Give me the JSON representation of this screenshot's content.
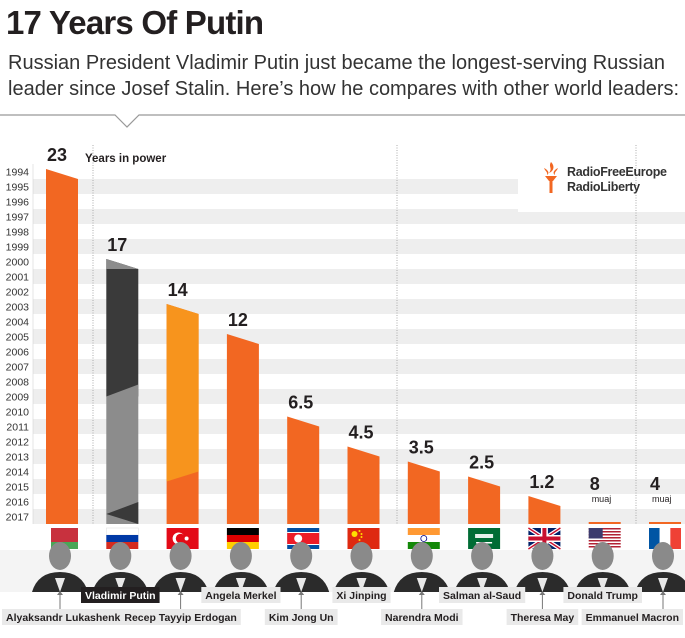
{
  "title": "17 Years Of Putin",
  "subtitle": "Russian President Vladimir Putin just became the longest-serving Russian leader since Josef Stalin. Here’s how he compares with other world leaders:",
  "logo": {
    "line1": "RadioFreeEurope",
    "line2": "RadioLiberty",
    "accent_color": "#f26722",
    "icon": "torch-icon"
  },
  "chart_data": {
    "type": "bar",
    "title": "17 Years Of Putin",
    "ylabel": "",
    "xlabel": "",
    "unit_label": "Years in power",
    "y_ticks": [
      "1994",
      "1995",
      "1996",
      "1997",
      "1998",
      "1999",
      "2000",
      "2001",
      "2002",
      "2003",
      "2004",
      "2005",
      "2006",
      "2007",
      "2008",
      "2009",
      "2010",
      "2011",
      "2012",
      "2013",
      "2014",
      "2015",
      "2016",
      "2017"
    ],
    "ylim": [
      1994,
      2017
    ],
    "categories": [
      "Alyaksandr Lukashenka",
      "Vladimir Putin",
      "Recep Tayyip Erdogan",
      "Angela Merkel",
      "Kim Jong Un",
      "Xi Jinping",
      "Narendra Modi",
      "Salman al-Saud",
      "Theresa May",
      "Donald Trump",
      "Emmanuel Macron"
    ],
    "values": [
      23,
      17,
      14,
      12,
      6.5,
      4.5,
      3.5,
      2.5,
      1.2,
      8,
      4
    ],
    "value_labels": [
      "23",
      "17",
      "14",
      "12",
      "6.5",
      "4.5",
      "3.5",
      "2.5",
      "1.2",
      "8",
      "4"
    ],
    "value_sublabels": [
      "",
      "",
      "",
      "",
      "",
      "",
      "",
      "",
      "",
      "muaj",
      "muaj"
    ],
    "flags": [
      "belarus-flag",
      "russia-flag",
      "turkey-flag",
      "germany-flag",
      "north-korea-flag",
      "china-flag",
      "india-flag",
      "saudi-arabia-flag",
      "uk-flag",
      "usa-flag",
      "france-flag"
    ],
    "colors": {
      "bar": "#f26722",
      "bar_light": "#f7941d",
      "putin_dark": "#3a3a3a",
      "putin_light": "#8c8c8c",
      "grid": "#eeeeee"
    }
  }
}
